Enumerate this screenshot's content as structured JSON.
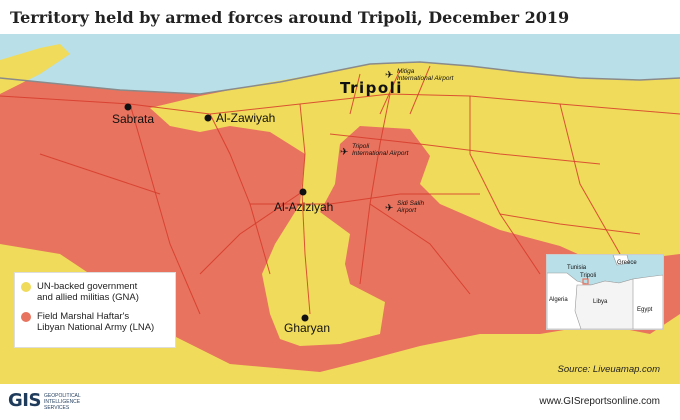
{
  "title": "Territory held by armed forces around Tripoli, December 2019",
  "map": {
    "cities": {
      "sabrata": "Sabrata",
      "zawiyah": "Al-Zawiyah",
      "tripoli": "Tripoli",
      "aziziyah": "Al-Aziziyah",
      "gharyan": "Gharyan"
    },
    "airports": {
      "mitiga": [
        "Mitiga",
        "International Airport"
      ],
      "tripoli_intl": [
        "Tripoli",
        "International Airport"
      ],
      "sidi_salih": [
        "Sidi Salih",
        "Airport"
      ]
    }
  },
  "legend": {
    "items": [
      {
        "label": [
          "UN-backed government",
          "and allied militias (GNA)"
        ],
        "color": "#f0db5a"
      },
      {
        "label": [
          "Field Marshal Haftar's",
          "Libyan National Army (LNA)"
        ],
        "color": "#e8735e"
      }
    ]
  },
  "inset": {
    "labels": {
      "greece": "Greece",
      "tunisia": "Tunisia",
      "tripoli": "Tripoli",
      "algeria": "Algeria",
      "libya": "Libya",
      "egypt": "Egypt"
    }
  },
  "source": "Source: Liveuamap.com",
  "footer": {
    "logo_mark": "GIS",
    "logo_lines": [
      "GEOPOLITICAL",
      "INTELLIGENCE",
      "SERVICES"
    ],
    "website": "www.GISreportsonline.com"
  },
  "colors": {
    "gna": "#f0db5a",
    "lna": "#e8735e",
    "sea": "#b9dfe8",
    "road": "#d63a2a"
  }
}
